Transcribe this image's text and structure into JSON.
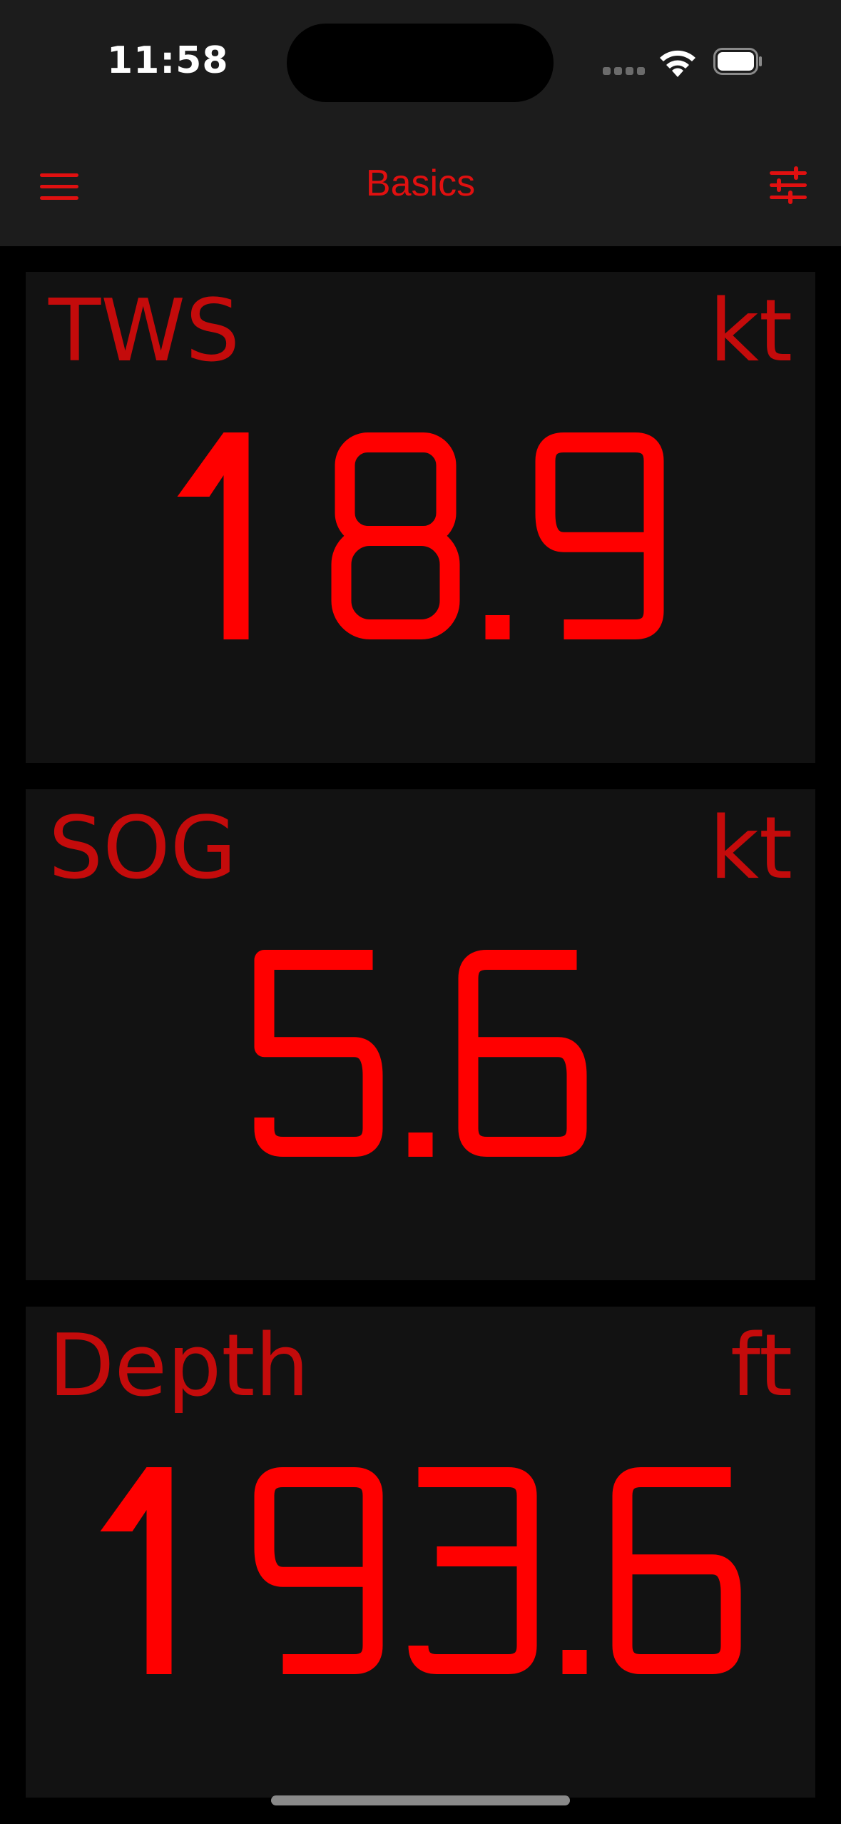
{
  "status_bar": {
    "time": "11:58"
  },
  "nav": {
    "title": "Basics",
    "menu_icon": "hamburger-menu-icon",
    "settings_icon": "sliders-icon"
  },
  "colors": {
    "accent": "#e01010",
    "value": "#ff0000",
    "label": "#c40b0b",
    "panel_bg": "#121212",
    "bar_bg": "#1c1c1c",
    "page_bg": "#000000"
  },
  "panels": [
    {
      "label": "TWS",
      "unit": "kt",
      "value": "18.9"
    },
    {
      "label": "SOG",
      "unit": "kt",
      "value": "5.6"
    },
    {
      "label": "Depth",
      "unit": "ft",
      "value": "193.6"
    }
  ]
}
